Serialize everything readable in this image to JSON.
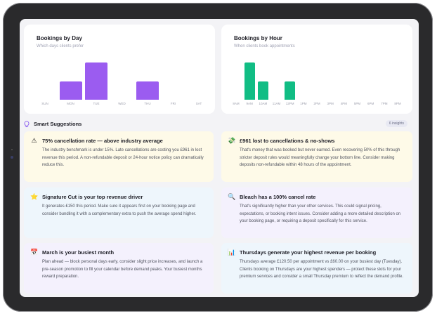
{
  "bookings_by_day": {
    "title": "Bookings by Day",
    "subtitle": "Which days clients prefer",
    "chart_data": {
      "type": "bar",
      "categories": [
        "SUN",
        "MON",
        "TUE",
        "WED",
        "THU",
        "FRI",
        "SAT"
      ],
      "values": [
        0,
        1,
        2,
        0,
        1,
        0,
        0
      ],
      "color": "#9b5cf0"
    }
  },
  "bookings_by_hour": {
    "title": "Bookings by Hour",
    "subtitle": "When clients book appointments",
    "chart_data": {
      "type": "bar",
      "categories": [
        "8AM",
        "9AM",
        "10AM",
        "11AM",
        "12PM",
        "1PM",
        "2PM",
        "3PM",
        "4PM",
        "5PM",
        "6PM",
        "7PM",
        "8PM"
      ],
      "values": [
        0,
        2,
        1,
        0,
        1,
        0,
        0,
        0,
        0,
        0,
        0,
        0,
        0
      ],
      "color": "#11bd84"
    }
  },
  "smart": {
    "title": "Smart Suggestions",
    "count": "6 insights",
    "items": [
      {
        "icon": "warning-icon",
        "glyph": "⚠",
        "bg": "#fefae8",
        "title": "75% cancellation rate — above industry average",
        "desc": "The industry benchmark is under 15%. Late cancellations are costing you £961 in lost revenue this period. A non-refundable deposit or 24-hour notice policy can dramatically reduce this."
      },
      {
        "icon": "money-icon",
        "glyph": "💸",
        "bg": "#fefae8",
        "title": "£961 lost to cancellations & no-shows",
        "desc": "That's money that was booked but never earned. Even recovering 50% of this through stricter deposit rules would meaningfully change your bottom line. Consider making deposits non-refundable within 48 hours of the appointment."
      },
      {
        "icon": "star-icon",
        "glyph": "⭐",
        "bg": "#eef6fc",
        "title": "Signature Cut is your top revenue driver",
        "desc": "It generates £150 this period. Make sure it appears first on your booking page and consider bundling it with a complementary extra to push the average spend higher."
      },
      {
        "icon": "magnifier-icon",
        "glyph": "🔍",
        "bg": "#f4f1fd",
        "title": "Bleach has a 100% cancel rate",
        "desc": "That's significantly higher than your other services. This could signal pricing, expectations, or booking intent issues. Consider adding a more detailed description on your booking page, or requiring a deposit specifically for this service."
      },
      {
        "icon": "calendar-icon",
        "glyph": "📅",
        "bg": "#f4f1fd",
        "title": "March is your busiest month",
        "desc": "Plan ahead — block personal days early, consider slight price increases, and launch a pre-season promotion to fill your calendar before demand peaks. Your busiest months reward preparation."
      },
      {
        "icon": "bar-chart-icon",
        "glyph": "📊",
        "bg": "#eef6fc",
        "title": "Thursdays generate your highest revenue per booking",
        "desc": "Thursdays average £120.50 per appointment vs £60.00 on your busiest day (Tuesday). Clients booking on Thursdays are your highest spenders — protect these slots for your premium services and consider a small Thursday premium to reflect the demand profile."
      }
    ]
  }
}
